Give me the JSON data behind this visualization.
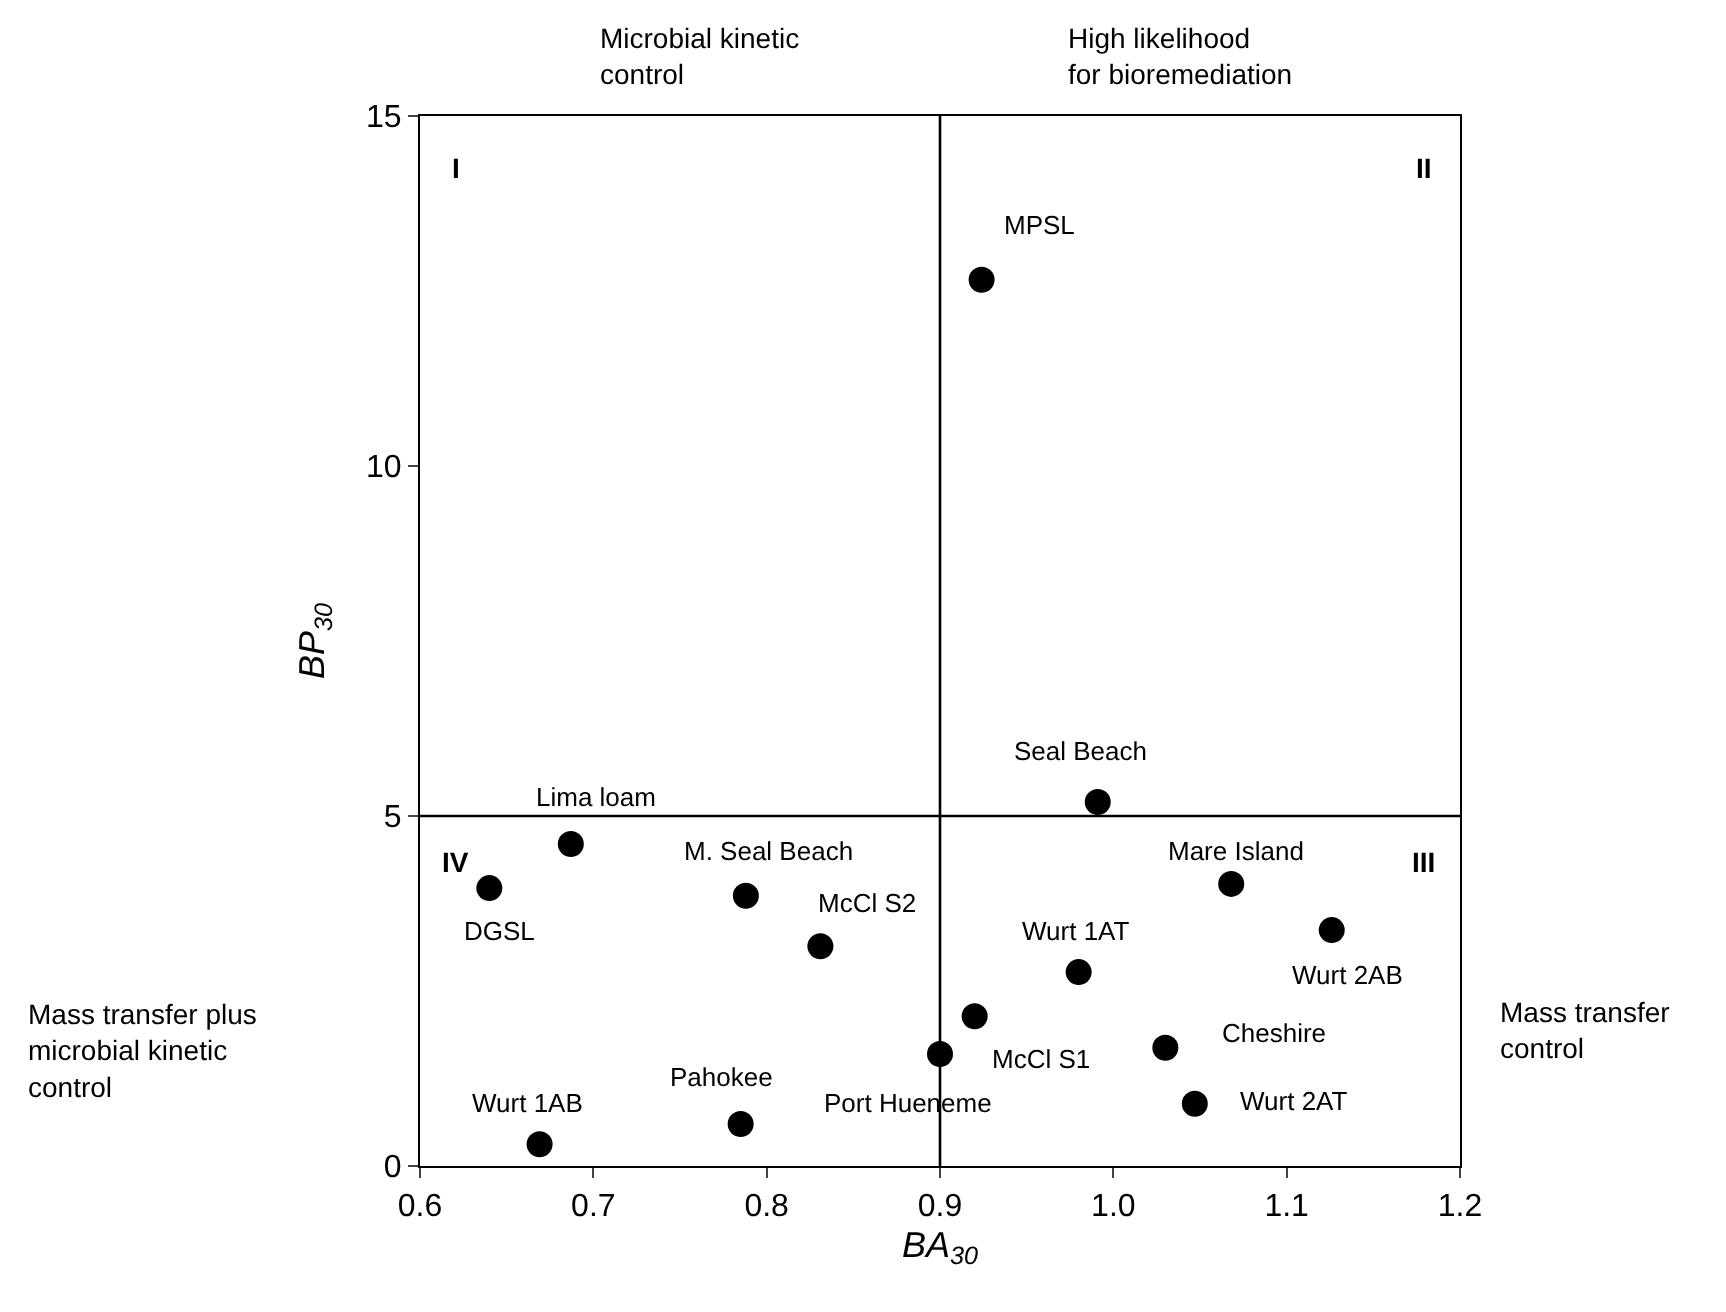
{
  "chart_data": {
    "type": "scatter",
    "xlabel": "BA$_{30}$",
    "ylabel": "BP$_{30}$",
    "x": [
      0.924,
      0.991,
      0.687,
      0.64,
      0.788,
      0.831,
      1.068,
      1.126,
      0.98,
      0.92,
      0.9,
      1.03,
      1.047,
      0.669,
      0.785
    ],
    "values": [
      12.66,
      5.2,
      4.6,
      3.97,
      3.86,
      3.14,
      4.03,
      3.37,
      2.77,
      2.14,
      1.6,
      1.69,
      0.89,
      0.31,
      0.6
    ],
    "color": "#000000",
    "marker": "circle",
    "xlim": [
      0.6,
      1.2
    ],
    "xticks": [
      0.6,
      0.7,
      0.8,
      0.9,
      {
        "value": 1.0,
        "label": "1.0"
      },
      1.1,
      1.2
    ],
    "ylim": [
      0,
      15
    ],
    "yticks": [
      0,
      5,
      10,
      15
    ],
    "ref_lines": [
      {
        "axis": "x",
        "value": 0.9,
        "color": "#000000"
      },
      {
        "axis": "y",
        "value": 5,
        "color": "#000000"
      }
    ],
    "annotations": [
      {
        "text": "MPSL",
        "x": 0.924,
        "y": 12.66
      },
      {
        "text": "Seal Beach",
        "x": 0.991,
        "y": 5.2
      },
      {
        "text": "Lima loam",
        "x": 0.687,
        "y": 4.6
      },
      {
        "text": "DGSL",
        "x": 0.64,
        "y": 3.97
      },
      {
        "text": "M. Seal Beach",
        "x": 0.788,
        "y": 3.86
      },
      {
        "text": "McCl S2",
        "x": 0.831,
        "y": 3.14
      },
      {
        "text": "Mare Island",
        "x": 1.068,
        "y": 4.03
      },
      {
        "text": "Wurt 2AB",
        "x": 1.126,
        "y": 3.37
      },
      {
        "text": "Wurt 1AT",
        "x": 0.98,
        "y": 2.77
      },
      {
        "text": "McCl S1",
        "x": 0.92,
        "y": 2.14
      },
      {
        "text": "Port Hueneme",
        "x": 0.9,
        "y": 1.6
      },
      {
        "text": "Cheshire",
        "x": 1.03,
        "y": 1.69
      },
      {
        "text": "Wurt 2AT",
        "x": 1.047,
        "y": 0.89
      },
      {
        "text": "Wurt 1AB",
        "x": 0.669,
        "y": 0.31
      },
      {
        "text": "Pahokee",
        "x": 0.785,
        "y": 0.6
      },
      "Microbial kinetic\ncontrol",
      "High likelihood\nfor bioremediation",
      "Mass transfer plus\nmicrobial kinetic\ncontrol",
      "Mass transfer\ncontrol",
      "I",
      "II",
      "III",
      "IV"
    ]
  }
}
